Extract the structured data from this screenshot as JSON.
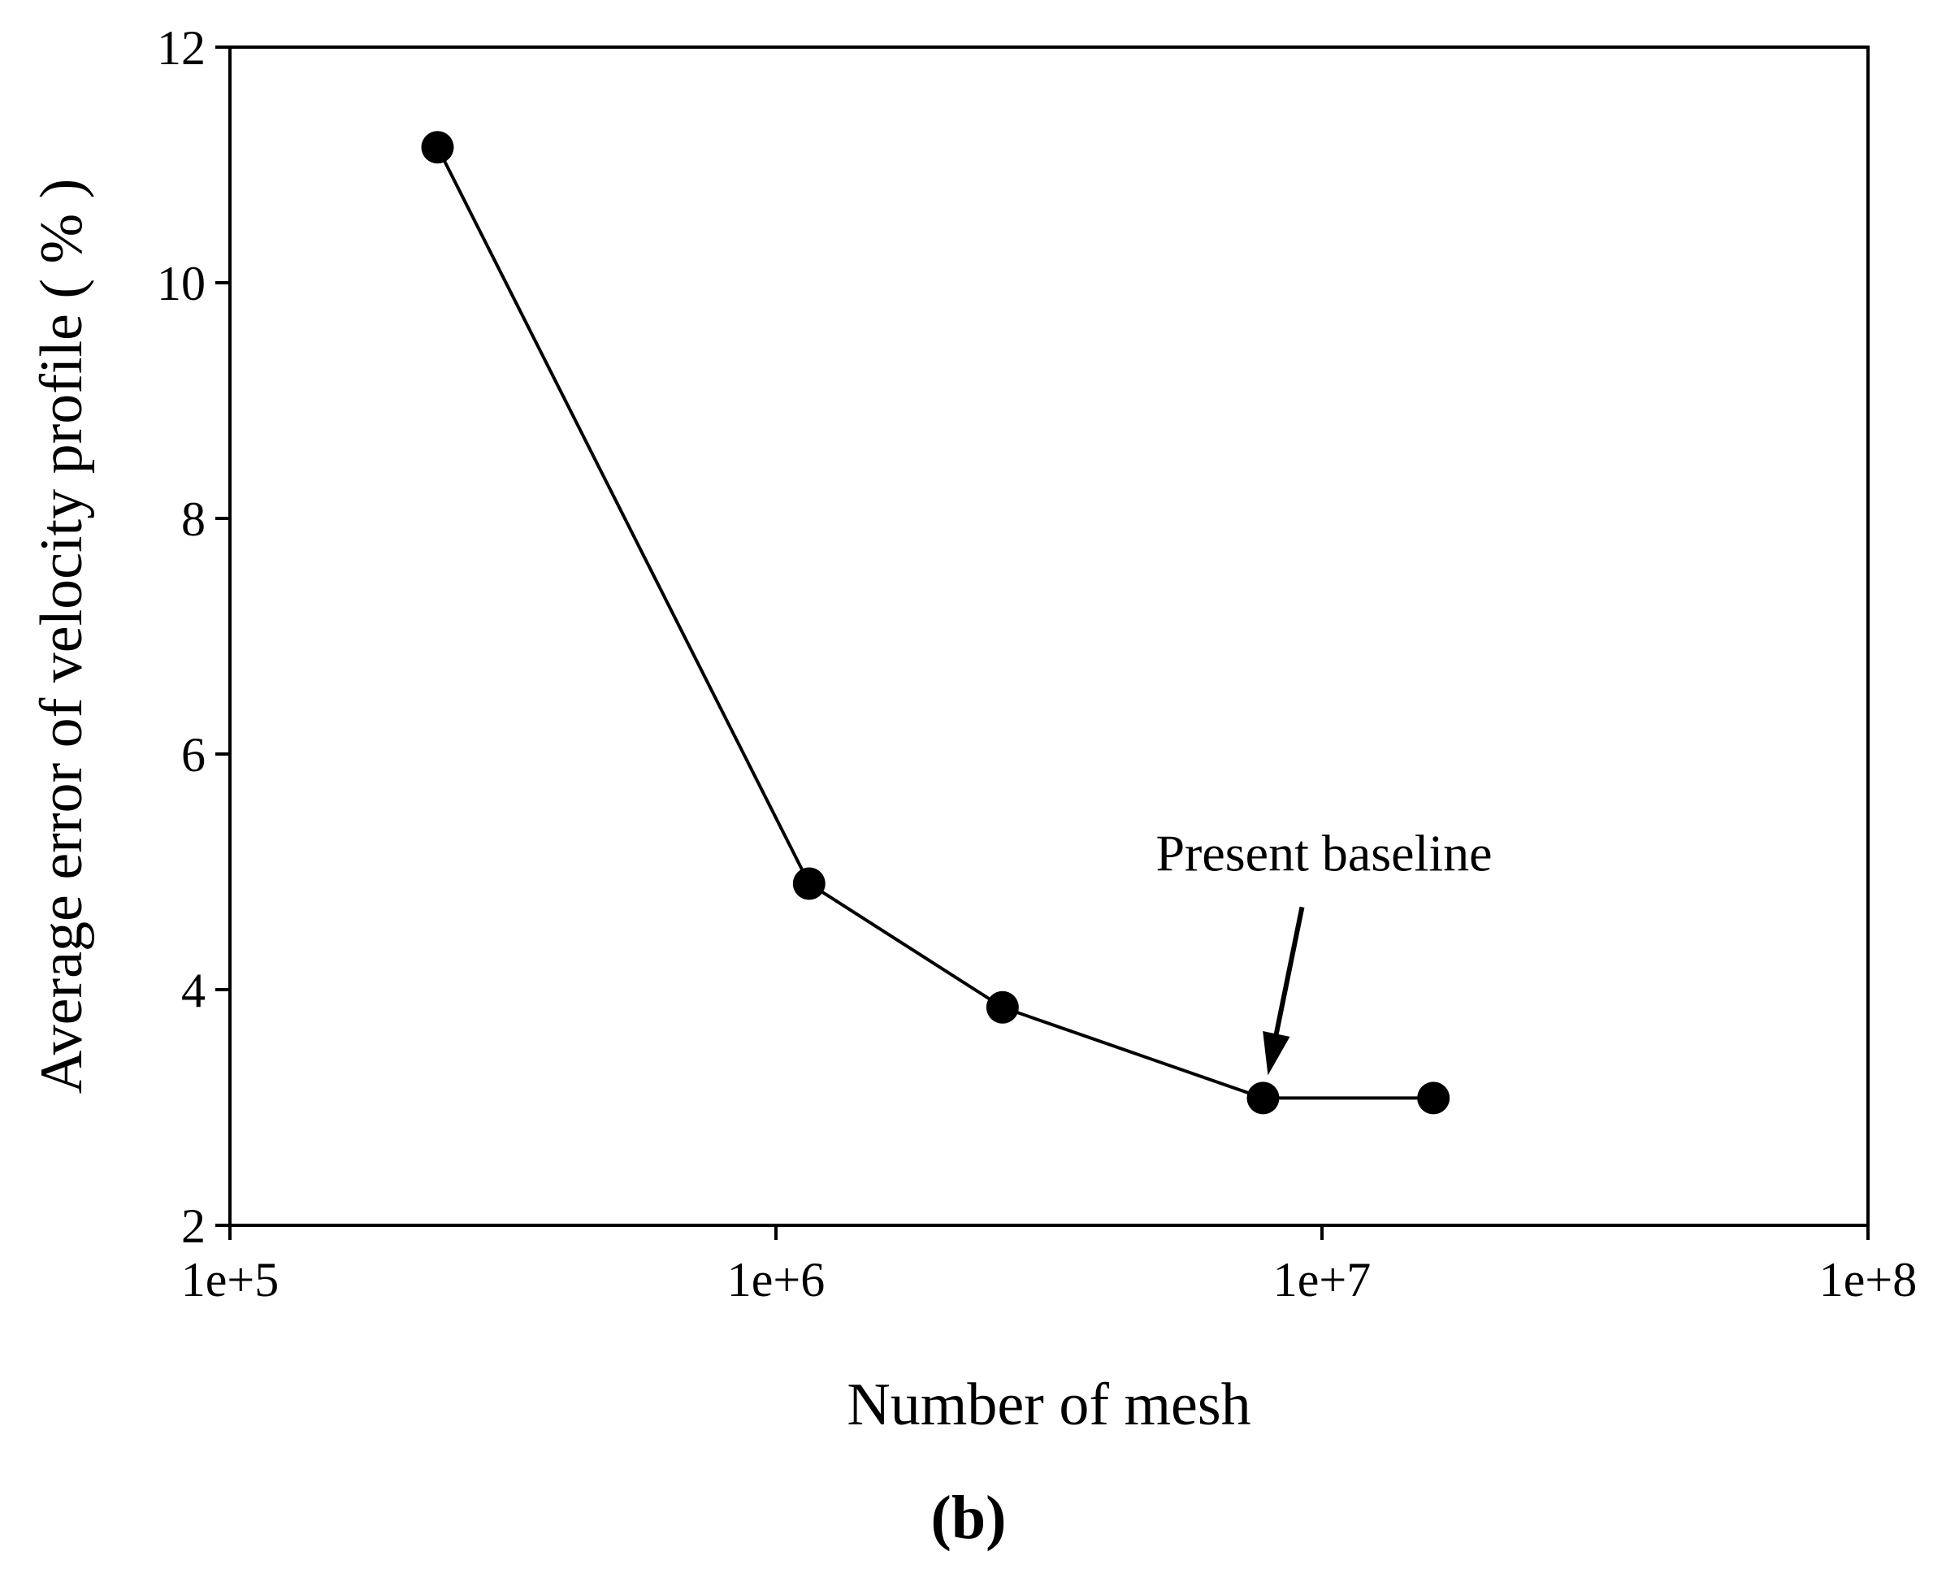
{
  "chart_data": {
    "type": "line",
    "xscale": "log",
    "x": [
      240000,
      1150000,
      2600000,
      7800000,
      16000000
    ],
    "series": [
      {
        "name": "Average error",
        "values": [
          11.15,
          4.9,
          3.85,
          3.08,
          3.08
        ]
      }
    ],
    "xlim": [
      100000,
      100000000
    ],
    "ylim": [
      2,
      12
    ],
    "xticks": [
      100000,
      1000000,
      10000000,
      100000000
    ],
    "xtick_labels": [
      "1e+5",
      "1e+6",
      "1e+7",
      "1e+8"
    ],
    "yticks": [
      2,
      4,
      6,
      8,
      10,
      12
    ],
    "ytick_labels": [
      "2",
      "4",
      "6",
      "8",
      "10",
      "12"
    ],
    "xlabel": "Number of mesh",
    "ylabel": "Average error of velocity profile ( % )",
    "annotation": {
      "text": "Present baseline",
      "target_x": 7800000,
      "target_y": 3.08
    },
    "panel_label": "(b)",
    "grid": false,
    "marker": "filled-circle",
    "colors": {
      "line": "#000000",
      "marker": "#000000",
      "axis": "#000000",
      "background": "#ffffff"
    }
  }
}
